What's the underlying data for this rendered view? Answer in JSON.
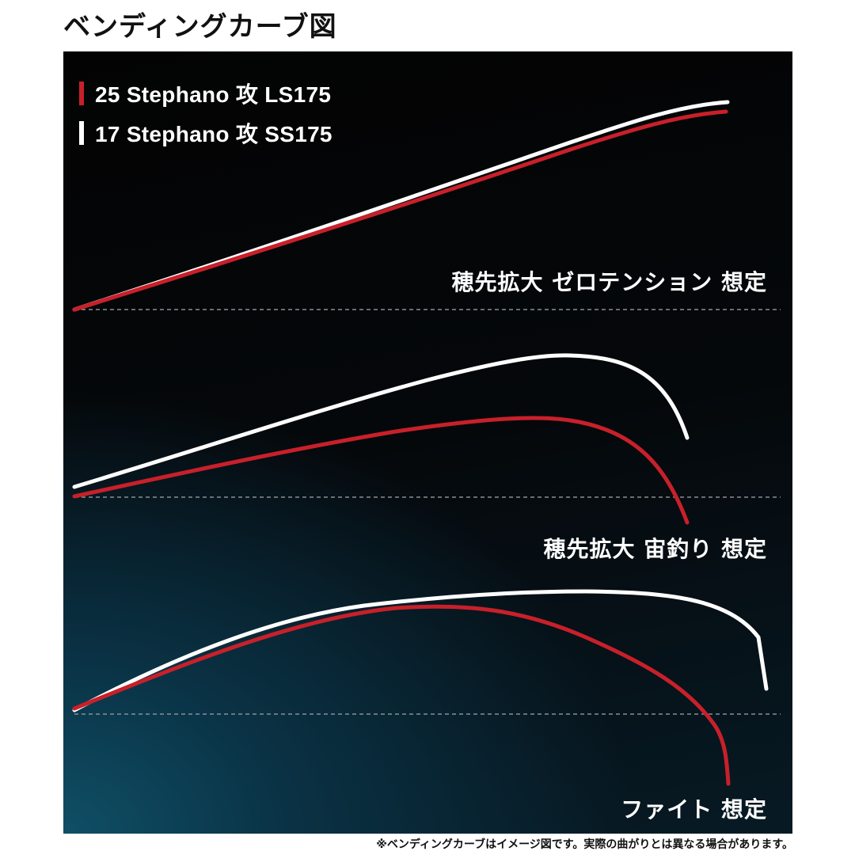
{
  "title": "ベンディングカーブ図",
  "legend": [
    {
      "label": "25 Stephano 攻 LS175",
      "color": "#c8202a"
    },
    {
      "label": "17 Stephano 攻 SS175",
      "color": "#ffffff"
    }
  ],
  "scenarios": [
    {
      "label": "穂先拡大 ゼロテンション 想定"
    },
    {
      "label": "穂先拡大 宙釣り 想定"
    },
    {
      "label": "ファイト 想定"
    }
  ],
  "footnote": "※ベンディングカーブはイメージ図です。実際の曲がりとは異なる場合があります。",
  "colors": {
    "red": "#c8202a",
    "white": "#ffffff",
    "baseline": "#8a8f93"
  }
}
